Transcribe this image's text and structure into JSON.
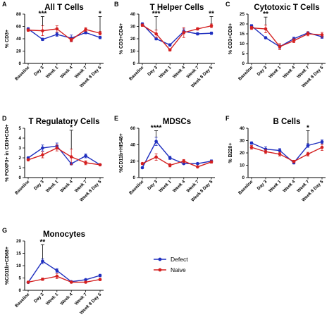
{
  "legend": {
    "entries": [
      {
        "name": "Defect",
        "color": "#1f2fbf"
      },
      {
        "name": "Naive",
        "color": "#d42020"
      }
    ]
  },
  "chart_data": [
    {
      "id": "A",
      "type": "line",
      "title": "All T Cells",
      "ylabel": "% CD3+",
      "ylim": [
        0,
        80
      ],
      "yticks": [
        0,
        20,
        40,
        60,
        80
      ],
      "categories": [
        "Baseline",
        "Day 3",
        "Week 1",
        "Week 4",
        "Week 7",
        "Week 8 Day 5"
      ],
      "series": [
        {
          "name": "Defect",
          "values": [
            56,
            39,
            47,
            41,
            50,
            42
          ],
          "err": [
            2,
            2,
            3,
            5,
            2,
            2
          ]
        },
        {
          "name": "Naive",
          "values": [
            54,
            53,
            56,
            38,
            55,
            49
          ],
          "err": [
            2,
            8,
            5,
            3,
            3,
            3
          ]
        }
      ],
      "annotations": [
        {
          "x": 1,
          "text": "***",
          "y": 76
        },
        {
          "x": 5,
          "text": "*",
          "y": 76
        }
      ]
    },
    {
      "id": "B",
      "type": "line",
      "title": "T Helper Cells",
      "ylabel": "% CD3+CD4+",
      "ylim": [
        0,
        40
      ],
      "yticks": [
        0,
        10,
        20,
        30,
        40
      ],
      "categories": [
        "Baseline",
        "Day 3",
        "Week 1",
        "Week 4",
        "Week 7",
        "Week 8 Day 5"
      ],
      "series": [
        {
          "name": "Defect",
          "values": [
            32,
            20,
            15,
            26,
            24,
            24.5
          ],
          "err": [
            1,
            1,
            1,
            2,
            1,
            1
          ]
        },
        {
          "name": "Naive",
          "values": [
            31,
            24,
            11,
            25,
            28,
            30.5
          ],
          "err": [
            1,
            3,
            1,
            4,
            1,
            1.5
          ]
        }
      ],
      "annotations": [
        {
          "x": 1,
          "text": "***",
          "y": 38
        },
        {
          "x": 5,
          "text": "**",
          "y": 38
        }
      ]
    },
    {
      "id": "C",
      "type": "line",
      "title": "Cytotoxic T Cells",
      "ylabel": "% CD3+CD8+",
      "ylim": [
        0,
        25
      ],
      "yticks": [
        0,
        5,
        10,
        15,
        20,
        25
      ],
      "categories": [
        "Baseline",
        "Day 3",
        "Week 1",
        "Week 4",
        "Week 7",
        "Week 8 Day 5"
      ],
      "series": [
        {
          "name": "Defect",
          "values": [
            19,
            13,
            8.5,
            12.5,
            15.5,
            13.5
          ],
          "err": [
            0.7,
            0.5,
            0.8,
            0.8,
            0.5,
            0.8
          ]
        },
        {
          "name": "Naive",
          "values": [
            18,
            17.5,
            8.5,
            11.5,
            15,
            14.5
          ],
          "err": [
            0.8,
            2,
            1.5,
            1,
            1,
            1.2
          ]
        }
      ],
      "annotations": [
        {
          "x": 1,
          "text": "**",
          "y": 23.5
        }
      ]
    },
    {
      "id": "D",
      "type": "line",
      "title": "T Regulatory Cells",
      "ylabel": "% FOXP3+ in CD3+CD4+",
      "ylim": [
        0,
        5
      ],
      "yticks": [
        0,
        1,
        2,
        3,
        4,
        5
      ],
      "categories": [
        "Baseline",
        "Day 3",
        "Week 1",
        "Week 4",
        "Week 7",
        "Week 8 Day 5"
      ],
      "series": [
        {
          "name": "Defect",
          "values": [
            2,
            3,
            3.2,
            1.4,
            2.2,
            1.3
          ],
          "err": [
            0.1,
            0.3,
            0.3,
            0.1,
            0.2,
            0.1
          ]
        },
        {
          "name": "Naive",
          "values": [
            1.8,
            2.3,
            3,
            2.1,
            1.5,
            1.3
          ],
          "err": [
            0.1,
            0.3,
            0.3,
            0.8,
            0.2,
            0.1
          ]
        }
      ],
      "annotations": [
        {
          "x": 3,
          "text": "*",
          "y": 4.8
        }
      ]
    },
    {
      "id": "E",
      "type": "line",
      "title": "MDSCs",
      "ylabel": "%CD11b+HIS48+",
      "ylim": [
        0,
        60
      ],
      "yticks": [
        0,
        20,
        40,
        60
      ],
      "categories": [
        "Baseline",
        "Day 3",
        "Week 1",
        "Week 4",
        "Week 7",
        "Week 8 Day 5"
      ],
      "series": [
        {
          "name": "Defect",
          "values": [
            12,
            44,
            24,
            17,
            17,
            20
          ],
          "err": [
            1,
            5,
            2,
            1,
            1,
            1.5
          ]
        },
        {
          "name": "Naive",
          "values": [
            17,
            25,
            15,
            20,
            13,
            19
          ],
          "err": [
            1,
            4,
            2,
            2,
            1,
            1.5
          ]
        }
      ],
      "annotations": [
        {
          "x": 1,
          "text": "****",
          "y": 57
        }
      ]
    },
    {
      "id": "F",
      "type": "line",
      "title": "B Cells",
      "ylabel": "% B220+",
      "ylim": [
        0,
        40
      ],
      "yticks": [
        0,
        10,
        20,
        30,
        40
      ],
      "categories": [
        "Baseline",
        "Day 3",
        "Week 1",
        "Week 4",
        "Week 7",
        "Week 8 Day 5"
      ],
      "series": [
        {
          "name": "Defect",
          "values": [
            28,
            23,
            22,
            12,
            26,
            29
          ],
          "err": [
            1,
            2,
            1.5,
            1,
            1.5,
            1.5
          ]
        },
        {
          "name": "Naive",
          "values": [
            24.5,
            21,
            19,
            13,
            19,
            24.5
          ],
          "err": [
            1.5,
            1.5,
            1.5,
            1,
            1.5,
            2.5
          ]
        }
      ],
      "annotations": [
        {
          "x": 4,
          "text": "*",
          "y": 38
        }
      ]
    },
    {
      "id": "G",
      "type": "line",
      "title": "Monocytes",
      "ylabel": "%CD11b+CD68+",
      "ylim": [
        0,
        20
      ],
      "yticks": [
        0,
        5,
        10,
        15,
        20
      ],
      "categories": [
        "Baseline",
        "Day 3",
        "Week 1",
        "Week 4",
        "Week 7",
        "Week 8 Day 5"
      ],
      "series": [
        {
          "name": "Defect",
          "values": [
            3.2,
            11.8,
            8,
            3.5,
            4.3,
            6
          ],
          "err": [
            0.3,
            1,
            0.8,
            0.3,
            0.3,
            0.5
          ]
        },
        {
          "name": "Naive",
          "values": [
            3.3,
            4.5,
            5.7,
            3.3,
            3.3,
            4.4
          ],
          "err": [
            0.3,
            0.5,
            1,
            0.3,
            0.3,
            0.5
          ]
        }
      ],
      "annotations": [
        {
          "x": 1,
          "text": "**",
          "y": 18.5
        }
      ]
    }
  ]
}
